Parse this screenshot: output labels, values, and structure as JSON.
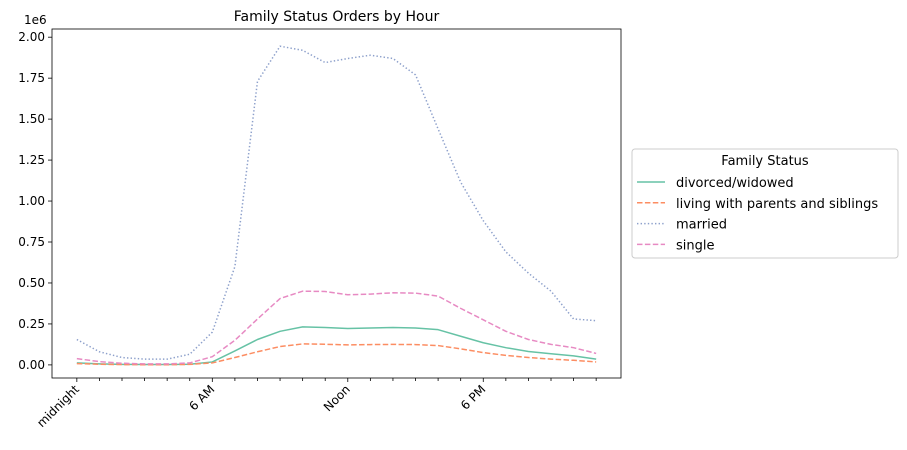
{
  "chart_data": {
    "type": "line",
    "title": "Family Status Orders by Hour",
    "xlabel": "",
    "ylabel": "",
    "y_offset_label": "1e6",
    "x": [
      0,
      1,
      2,
      3,
      4,
      5,
      6,
      7,
      8,
      9,
      10,
      11,
      12,
      13,
      14,
      15,
      16,
      17,
      18,
      19,
      20,
      21,
      22,
      23
    ],
    "x_ticks": [
      {
        "x": 0,
        "label": "midnight"
      },
      {
        "x": 6,
        "label": "6 AM"
      },
      {
        "x": 12,
        "label": "Noon"
      },
      {
        "x": 18,
        "label": "6 PM"
      }
    ],
    "ylim": [
      -0.08,
      2.05
    ],
    "y_ticks": [
      "0.00",
      "0.25",
      "0.50",
      "0.75",
      "1.00",
      "1.25",
      "1.50",
      "1.75",
      "2.00"
    ],
    "grid": false,
    "legend": {
      "title": "Family Status",
      "placement": "center-right outside"
    },
    "series": [
      {
        "name": "divorced/widowed",
        "color": "#66c2a5",
        "dash": "solid",
        "values": [
          0.012,
          0.006,
          0.003,
          0.002,
          0.002,
          0.004,
          0.018,
          0.085,
          0.155,
          0.205,
          0.232,
          0.228,
          0.222,
          0.225,
          0.228,
          0.225,
          0.215,
          0.175,
          0.135,
          0.105,
          0.082,
          0.068,
          0.055,
          0.035
        ]
      },
      {
        "name": "living with parents and siblings",
        "color": "#fc8d62",
        "dash": "dashed",
        "values": [
          0.008,
          0.004,
          0.002,
          0.001,
          0.001,
          0.003,
          0.012,
          0.045,
          0.08,
          0.112,
          0.128,
          0.126,
          0.122,
          0.124,
          0.125,
          0.124,
          0.118,
          0.098,
          0.075,
          0.058,
          0.045,
          0.035,
          0.028,
          0.018
        ]
      },
      {
        "name": "married",
        "color": "#8da0cb",
        "dash": "dotted",
        "values": [
          0.155,
          0.08,
          0.045,
          0.035,
          0.035,
          0.065,
          0.2,
          0.6,
          1.73,
          1.945,
          1.92,
          1.845,
          1.87,
          1.89,
          1.87,
          1.77,
          1.44,
          1.115,
          0.88,
          0.69,
          0.56,
          0.45,
          0.28,
          0.27
        ]
      },
      {
        "name": "single",
        "color": "#e78ac3",
        "dash": "dashed",
        "values": [
          0.038,
          0.02,
          0.01,
          0.006,
          0.006,
          0.012,
          0.05,
          0.15,
          0.28,
          0.405,
          0.45,
          0.448,
          0.428,
          0.432,
          0.44,
          0.438,
          0.42,
          0.345,
          0.275,
          0.205,
          0.155,
          0.125,
          0.105,
          0.07
        ]
      }
    ]
  }
}
